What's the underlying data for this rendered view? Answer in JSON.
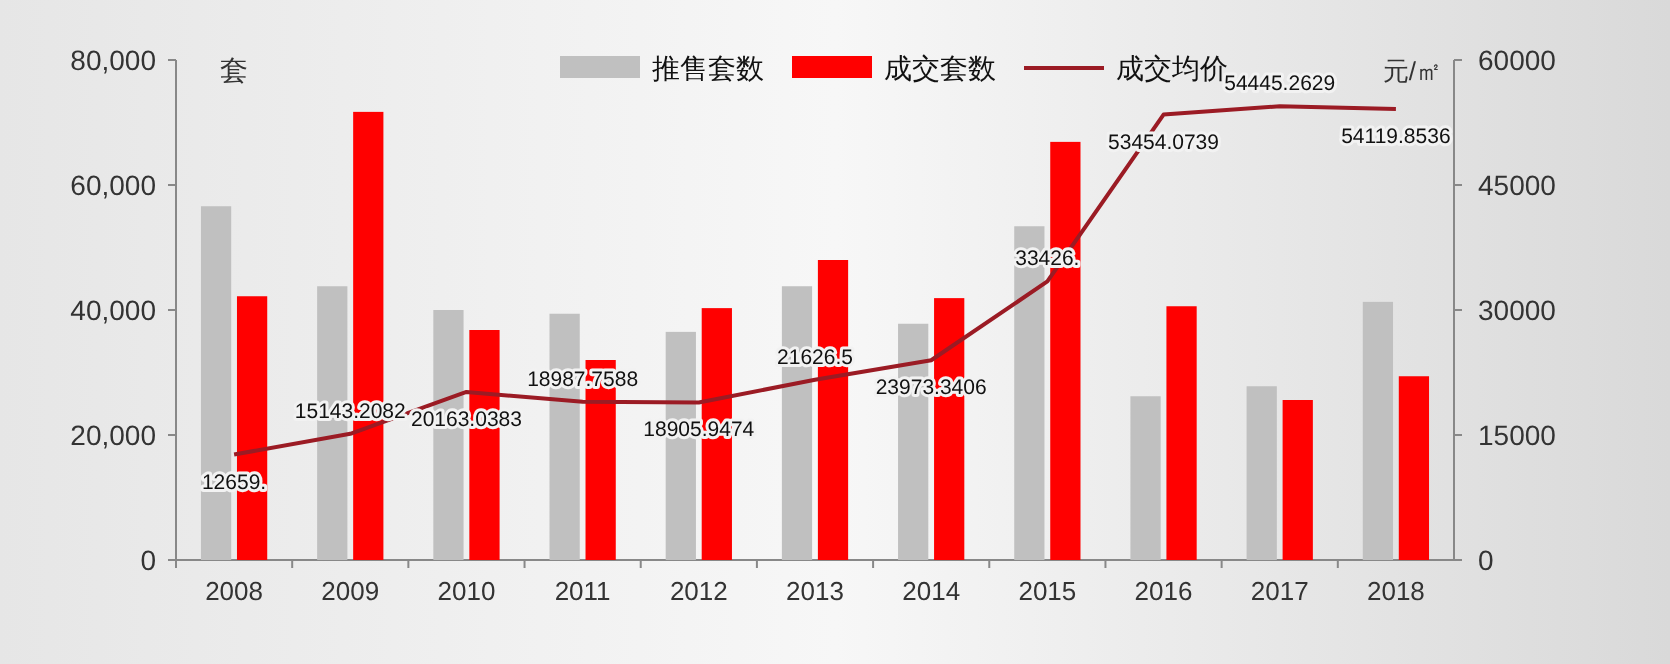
{
  "chart_data": {
    "type": "bar",
    "categories": [
      "2008",
      "2009",
      "2010",
      "2011",
      "2012",
      "2013",
      "2014",
      "2015",
      "2016",
      "2017",
      "2018"
    ],
    "series": [
      {
        "name": "推售套数",
        "color": "#c0c0c0",
        "values": [
          56600,
          43800,
          40000,
          39400,
          36500,
          43800,
          37800,
          53400,
          26200,
          27800,
          41300
        ]
      },
      {
        "name": "成交套数",
        "color": "#ff0000",
        "values": [
          42200,
          71700,
          36800,
          32000,
          40300,
          48000,
          41900,
          66900,
          40600,
          25600,
          29400
        ]
      },
      {
        "name": "成交均价",
        "type": "line",
        "axis": "y2",
        "color": "#9b1b24",
        "values": [
          12659,
          15143.2082,
          20163.0383,
          18987.7588,
          18905.9474,
          21626.5,
          23973.3406,
          33426,
          53454.0739,
          54445.2629,
          54119.8536
        ],
        "value_labels": [
          "12659.",
          "15143.2082",
          "20163.0383",
          "18987.7588",
          "18905.9474",
          "21626.5",
          "23973.3406",
          "33426.",
          "53454.0739",
          "54445.2629",
          "54119.8536"
        ]
      }
    ],
    "ylabel": "套",
    "y2label": "元/㎡",
    "ylim": [
      0,
      80000
    ],
    "yticks": [
      {
        "value": 0,
        "label": "0"
      },
      {
        "value": 20000,
        "label": "20,000"
      },
      {
        "value": 40000,
        "label": "40,000"
      },
      {
        "value": 60000,
        "label": "60,000"
      },
      {
        "value": 80000,
        "label": "80,000"
      }
    ],
    "y2lim": [
      0,
      60000
    ],
    "y2ticks": [
      0,
      15000,
      30000,
      45000,
      60000
    ],
    "legend": "top",
    "grid": false
  }
}
